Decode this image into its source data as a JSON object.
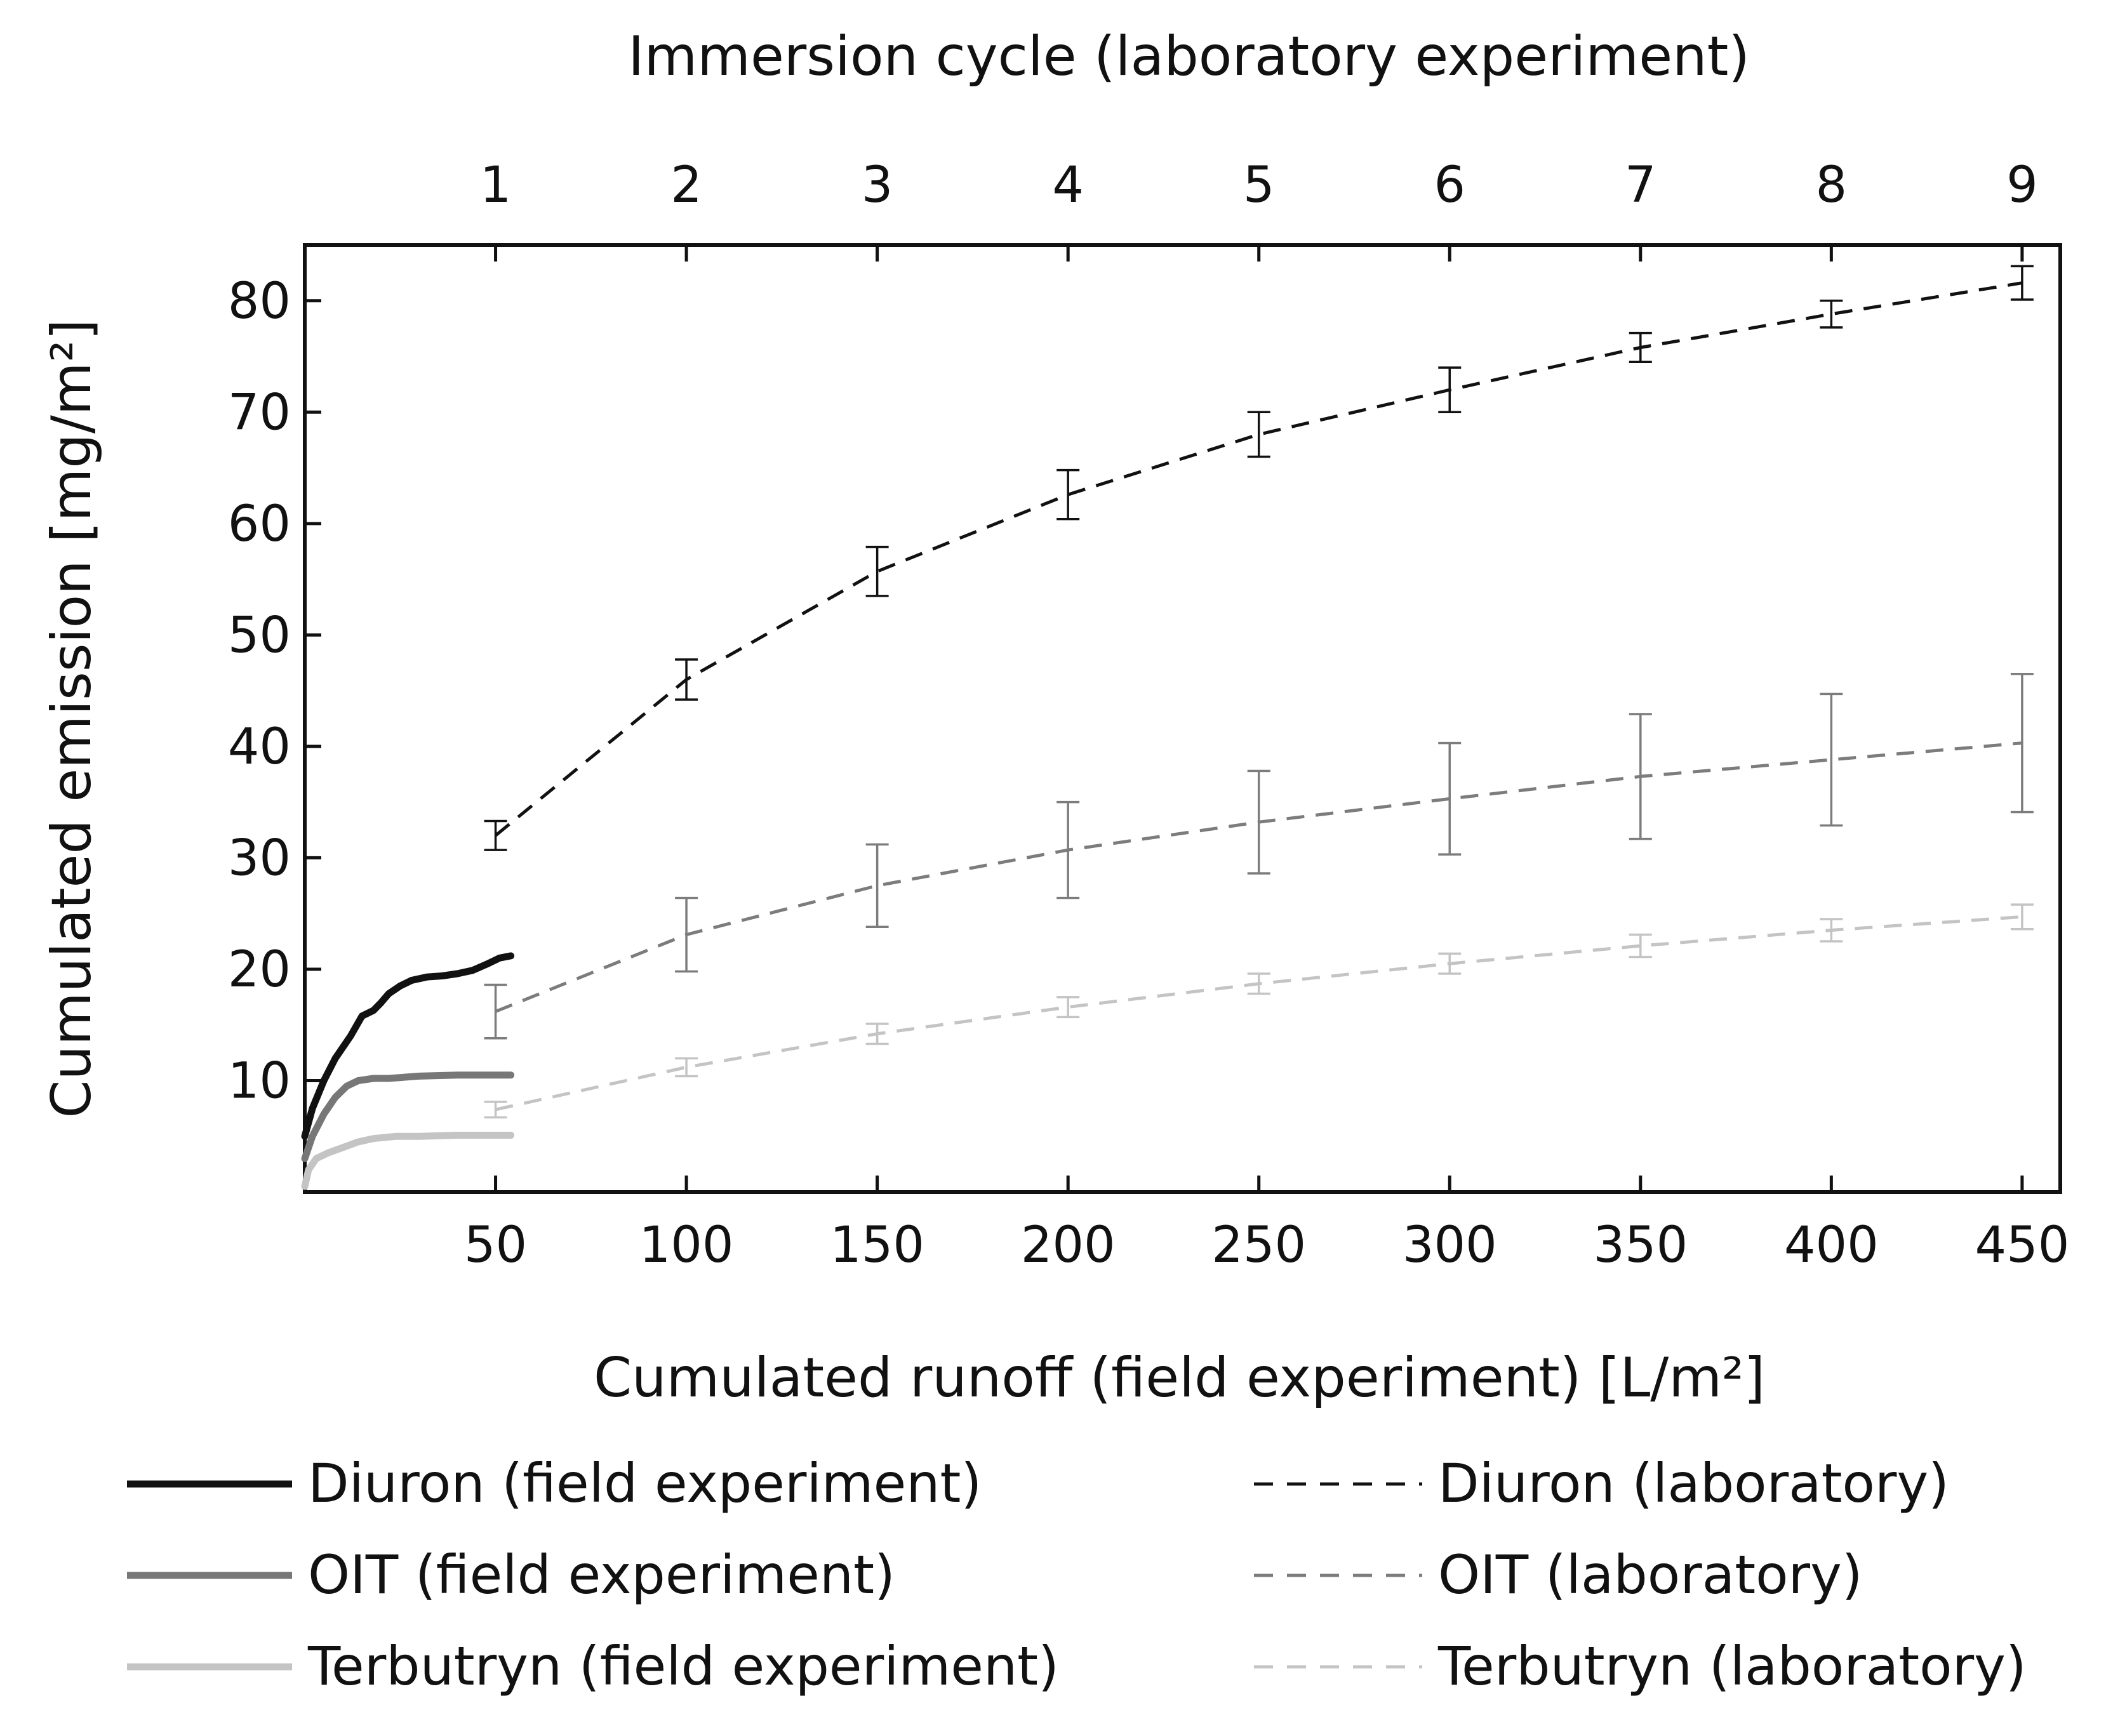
{
  "chart_data": {
    "type": "line",
    "top_axis": {
      "label": "Immersion cycle (laboratory experiment)",
      "tick_labels": [
        "1",
        "2",
        "3",
        "4",
        "5",
        "6",
        "7",
        "8",
        "9"
      ]
    },
    "xlabel": "Cumulated runoff (field experiment)  [L/m²]",
    "ylabel": "Cumulated emission [mg/m²]",
    "xlim": [
      0,
      460
    ],
    "ylim": [
      0,
      85
    ],
    "x_ticks": [
      50,
      100,
      150,
      200,
      250,
      300,
      350,
      400,
      450
    ],
    "y_ticks": [
      10,
      20,
      30,
      40,
      50,
      60,
      70,
      80
    ],
    "grid": false,
    "legend_position": "bottom",
    "series": [
      {
        "name": "Diuron (field experiment)",
        "style": "solid",
        "color": "#111111",
        "x": [
          0,
          2,
          5,
          8,
          12,
          15,
          18,
          20,
          22,
          25,
          28,
          32,
          36,
          40,
          44,
          48,
          51,
          54
        ],
        "y": [
          5,
          7.5,
          10,
          12,
          14,
          15.8,
          16.3,
          17,
          17.8,
          18.5,
          19,
          19.3,
          19.4,
          19.6,
          19.9,
          20.5,
          21,
          21.2
        ]
      },
      {
        "name": "OIT (field experiment)",
        "style": "solid",
        "color": "#777777",
        "x": [
          0,
          2,
          5,
          8,
          11,
          14,
          18,
          22,
          30,
          40,
          54
        ],
        "y": [
          3,
          5,
          7,
          8.5,
          9.5,
          10,
          10.2,
          10.2,
          10.4,
          10.5,
          10.5
        ]
      },
      {
        "name": "Terbutryn (field experiment)",
        "style": "solid",
        "color": "#c4c4c4",
        "x": [
          0,
          1,
          3,
          6,
          10,
          14,
          18,
          24,
          30,
          40,
          54
        ],
        "y": [
          0.5,
          2,
          3,
          3.5,
          4,
          4.5,
          4.8,
          5,
          5,
          5.1,
          5.1
        ]
      },
      {
        "name": "Diuron (laboratory)",
        "style": "dashed",
        "color": "#111111",
        "x": [
          50,
          100,
          150,
          200,
          250,
          300,
          350,
          400,
          450
        ],
        "y": [
          32,
          46,
          55.7,
          62.6,
          68,
          72,
          75.8,
          78.8,
          81.6
        ],
        "err": [
          1.3,
          1.8,
          2.2,
          2.2,
          2.0,
          2.0,
          1.3,
          1.2,
          1.5
        ]
      },
      {
        "name": "OIT (laboratory)",
        "style": "dashed",
        "color": "#7c7c7c",
        "x": [
          50,
          100,
          150,
          200,
          250,
          300,
          350,
          400,
          450
        ],
        "y": [
          16.2,
          23.1,
          27.5,
          30.7,
          33.2,
          35.3,
          37.3,
          38.8,
          40.3
        ],
        "err": [
          2.4,
          3.3,
          3.7,
          4.3,
          4.6,
          5.0,
          5.6,
          5.9,
          6.2
        ]
      },
      {
        "name": "Terbutryn (laboratory)",
        "style": "dashed",
        "color": "#c4c4c4",
        "x": [
          50,
          100,
          150,
          200,
          250,
          300,
          350,
          400,
          450
        ],
        "y": [
          7.4,
          11.2,
          14.2,
          16.6,
          18.7,
          20.5,
          22.1,
          23.5,
          24.7
        ],
        "err": [
          0.7,
          0.8,
          0.9,
          0.9,
          0.9,
          0.9,
          1.0,
          1.0,
          1.1
        ]
      }
    ]
  }
}
